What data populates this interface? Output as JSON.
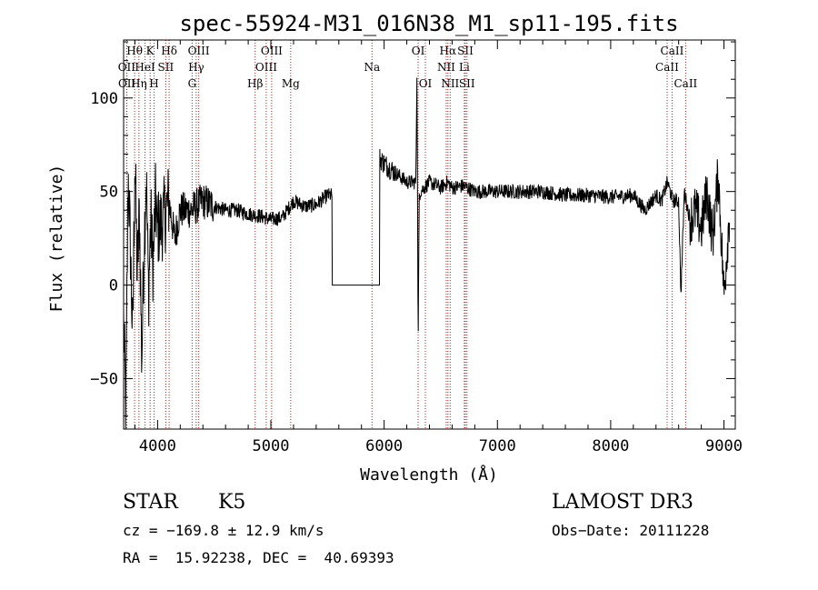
{
  "chart_data": {
    "type": "line",
    "title": "spec-55924-M31_016N38_M1_sp11-195.fits",
    "xlabel": "Wavelength (Å)",
    "ylabel": "Flux (relative)",
    "xlim": [
      3700,
      9100
    ],
    "ylim": [
      -77,
      131
    ],
    "xticks": [
      4000,
      5000,
      6000,
      7000,
      8000,
      9000
    ],
    "yticks": [
      -50,
      0,
      50,
      100
    ],
    "grid": false,
    "series": [
      {
        "x": [
          3700,
          3720,
          3740,
          3760,
          3780,
          3800,
          3820,
          3840,
          3860,
          3880,
          3900,
          3920,
          3940,
          3960,
          3980,
          4000,
          4050,
          4100,
          4150,
          4200,
          4300,
          4400,
          4500,
          4600,
          4700,
          4800,
          4900,
          5000,
          5100,
          5200,
          5300,
          5400,
          5500,
          5540,
          5541,
          5960,
          5961,
          6000,
          6100,
          6200,
          6280,
          6290,
          6300,
          6310,
          6320,
          6400,
          6500,
          6560,
          6600,
          6700,
          6800,
          7000,
          7200,
          7400,
          7600,
          7800,
          8000,
          8200,
          8300,
          8400,
          8450,
          8500,
          8550,
          8600,
          8620,
          8650,
          8700,
          8750,
          8800,
          8850,
          8900,
          8950,
          9000,
          9050
        ],
        "y": [
          -20,
          -70,
          60,
          20,
          -30,
          70,
          5,
          40,
          -40,
          20,
          60,
          -5,
          35,
          10,
          45,
          30,
          35,
          45,
          25,
          40,
          40,
          45,
          42,
          40,
          40,
          38,
          37,
          35,
          36,
          45,
          42,
          43,
          48,
          48,
          0,
          0,
          68,
          65,
          60,
          55,
          55,
          120,
          -35,
          48,
          50,
          55,
          52,
          55,
          52,
          53,
          50,
          50,
          50,
          50,
          48,
          48,
          47,
          48,
          40,
          48,
          45,
          55,
          45,
          45,
          -5,
          50,
          35,
          40,
          30,
          50,
          25,
          60,
          -5,
          40
        ]
      }
    ],
    "lines": [
      {
        "label": "Hθ",
        "x": 3797,
        "row": 0
      },
      {
        "label": "OII",
        "x": 3727,
        "row": 1
      },
      {
        "label": "OII",
        "x": 3729,
        "row": 2
      },
      {
        "label": "K",
        "x": 3934,
        "row": 0
      },
      {
        "label": "HeI",
        "x": 3889,
        "row": 1
      },
      {
        "label": "Hη",
        "x": 3835,
        "row": 2
      },
      {
        "label": "Hδ",
        "x": 4102,
        "row": 0
      },
      {
        "label": "SII",
        "x": 4072,
        "row": 1
      },
      {
        "label": "H",
        "x": 3969,
        "row": 2
      },
      {
        "label": "OIII",
        "x": 4363,
        "row": 0
      },
      {
        "label": "Hγ",
        "x": 4341,
        "row": 1
      },
      {
        "label": "G",
        "x": 4305,
        "row": 2
      },
      {
        "label": "OIII",
        "x": 5007,
        "row": 0
      },
      {
        "label": "OIII",
        "x": 4959,
        "row": 1
      },
      {
        "label": "Hβ",
        "x": 4861,
        "row": 2
      },
      {
        "label": "Mg",
        "x": 5175,
        "row": 2
      },
      {
        "label": "Na",
        "x": 5893,
        "row": 1
      },
      {
        "label": "OI",
        "x": 6300,
        "row": 0
      },
      {
        "label": "OI",
        "x": 6364,
        "row": 2
      },
      {
        "label": "Hα",
        "x": 6563,
        "row": 0
      },
      {
        "label": "SII",
        "x": 6717,
        "row": 0
      },
      {
        "label": "NII",
        "x": 6548,
        "row": 1
      },
      {
        "label": "Li",
        "x": 6708,
        "row": 1
      },
      {
        "label": "NII",
        "x": 6583,
        "row": 2
      },
      {
        "label": "SII",
        "x": 6731,
        "row": 2
      },
      {
        "label": "CaII",
        "x": 8542,
        "row": 0
      },
      {
        "label": "CaII",
        "x": 8498,
        "row": 1
      },
      {
        "label": "CaII",
        "x": 8662,
        "row": 2
      }
    ]
  },
  "info": {
    "class": "STAR",
    "subclass": "K5",
    "survey": "LAMOST DR3",
    "cz": "cz = −169.8 ± 12.9 km/s",
    "obsdate": "Obs−Date: 20111228",
    "radec": "RA =  15.92238, DEC =  40.69393"
  },
  "colors": {
    "spectrum": "#000000",
    "lines": "#b22222",
    "axes": "#000000"
  }
}
